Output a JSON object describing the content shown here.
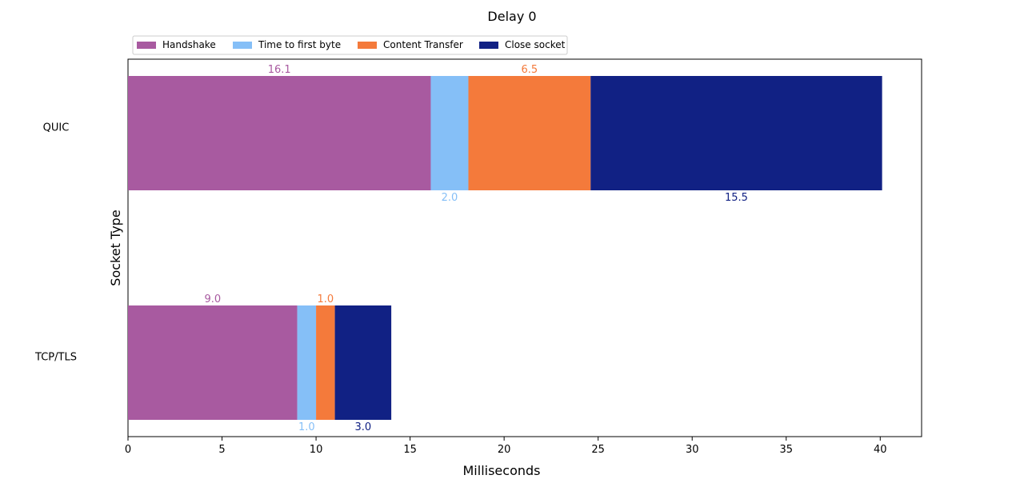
{
  "chart_data": {
    "type": "bar",
    "orientation": "horizontal",
    "stacked": true,
    "title": "Delay 0",
    "xlabel": "Milliseconds",
    "ylabel": "Socket Type",
    "xlim": [
      0,
      42.2
    ],
    "xticks": [
      0,
      5,
      10,
      15,
      20,
      25,
      30,
      35,
      40
    ],
    "categories": [
      "QUIC",
      "TCP/TLS"
    ],
    "series": [
      {
        "name": "Handshake",
        "color": "#a85aa0",
        "values": [
          16.1,
          9.0
        ],
        "labels": [
          "16.1",
          "9.0"
        ]
      },
      {
        "name": "Time to first byte",
        "color": "#85bff7",
        "values": [
          2.0,
          1.0
        ],
        "labels": [
          "2.0",
          "1.0"
        ]
      },
      {
        "name": "Content Transfer",
        "color": "#f47a3b",
        "values": [
          6.5,
          1.0
        ],
        "labels": [
          "6.5",
          "1.0"
        ]
      },
      {
        "name": "Close socket",
        "color": "#112184",
        "values": [
          15.5,
          3.0
        ],
        "labels": [
          "15.5",
          "3.0"
        ]
      }
    ],
    "label_colors": [
      "#a85aa0",
      "#85bff7",
      "#f47a3b",
      "#112184"
    ],
    "legend_position": "top-left",
    "grid": false
  }
}
